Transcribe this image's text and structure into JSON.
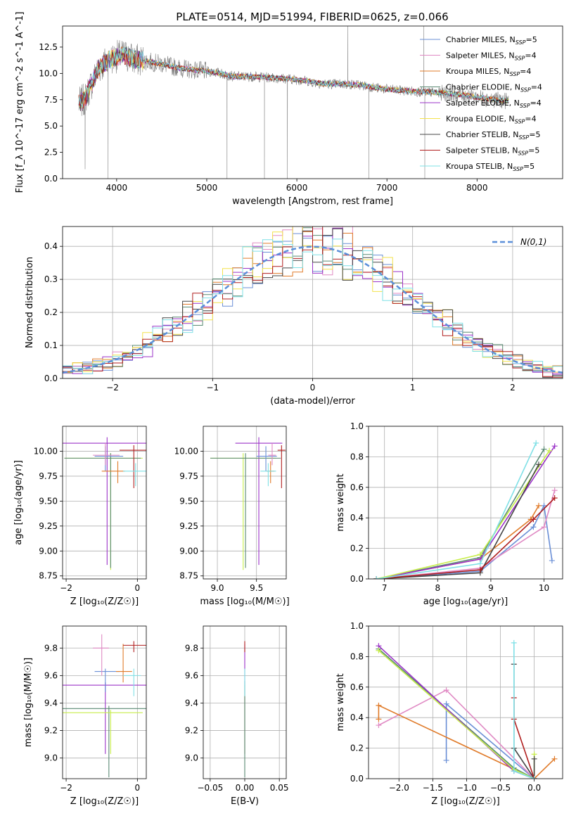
{
  "colors": {
    "Chabrier MILES": "#6a8fd6",
    "Salpeter MILES": "#e08ac4",
    "Kroupa MILES": "#e07b2a",
    "Chabrier ELODIE": "#5a8a72",
    "Salpeter ELODIE": "#9b33c8",
    "Kroupa ELODIE": "#f3e24c",
    "Chabrier STELIB": "#454545",
    "Salpeter STELIB": "#b01e1e",
    "Kroupa STELIB": "#7fe0e6",
    "lime": "#c8ee4a",
    "data": "#808080",
    "gaussian": "#5b8fd9"
  },
  "chart_data": [
    {
      "id": "spectrum",
      "type": "line",
      "title": "PLATE=0514, MJD=51994, FIBERID=0625, z=0.066",
      "xlabel": "wavelength [Angstrom, rest frame]",
      "ylabel": "Flux [f_λ 10^-17 erg cm^-2 s^-1 A^-1]",
      "xlim": [
        3400,
        8950
      ],
      "ylim": [
        0,
        14.5
      ],
      "xticks": [
        4000,
        5000,
        6000,
        7000,
        8000
      ],
      "yticks": [
        0.0,
        2.5,
        5.0,
        7.5,
        10.0,
        12.5
      ],
      "grid": false,
      "legend_position": "top-right",
      "legend": [
        {
          "model": "Chabrier MILES",
          "n_ssp": "5"
        },
        {
          "model": "Salpeter MILES",
          "n_ssp": "4"
        },
        {
          "model": "Kroupa MILES",
          "n_ssp": "4"
        },
        {
          "model": "Chabrier ELODIE",
          "n_ssp": "4"
        },
        {
          "model": "Salpeter ELODIE",
          "n_ssp": "4"
        },
        {
          "model": "Kroupa ELODIE",
          "n_ssp": "4"
        },
        {
          "model": "Chabrier STELIB",
          "n_ssp": "5"
        },
        {
          "model": "Salpeter STELIB",
          "n_ssp": "5"
        },
        {
          "model": "Kroupa STELIB",
          "n_ssp": "5"
        }
      ],
      "continuum": {
        "x": [
          3580,
          3650,
          3700,
          3800,
          3900,
          4000,
          4100,
          4200,
          4300,
          4500,
          4700,
          4900,
          5100,
          5300,
          5500,
          5700,
          5900,
          6100,
          6300,
          6500,
          6700,
          6900,
          7100,
          7300,
          7500,
          7700,
          7900,
          8100,
          8300
        ],
        "y": [
          7.1,
          7.6,
          8.6,
          10.5,
          11.2,
          11.6,
          11.7,
          11.3,
          11.2,
          10.9,
          10.5,
          10.3,
          10.1,
          9.7,
          9.7,
          9.6,
          9.5,
          9.3,
          9.0,
          9.0,
          8.9,
          8.6,
          8.4,
          8.3,
          8.2,
          8.1,
          7.9,
          7.6,
          7.4
        ]
      },
      "absorption_features": [
        {
          "x": 3650,
          "y": 0.9
        },
        {
          "x": 3905,
          "y": 0.0
        },
        {
          "x": 5225,
          "y": 0.0
        },
        {
          "x": 5640,
          "y": 0.0
        },
        {
          "x": 5895,
          "y": 0.0
        },
        {
          "x": 6800,
          "y": 0.0
        },
        {
          "x": 7420,
          "y": 0.0
        }
      ],
      "emission_features": [
        {
          "x": 6565,
          "y": 14.5
        },
        {
          "x": 7410,
          "y": 14.5
        }
      ]
    },
    {
      "id": "residuals",
      "type": "histogram",
      "xlabel": "(data-model)/error",
      "ylabel": "Normed distribution",
      "xlim": [
        -2.5,
        2.5
      ],
      "ylim": [
        0,
        0.46
      ],
      "xticks": [
        -2,
        -1,
        0,
        1,
        2
      ],
      "yticks": [
        0.0,
        0.1,
        0.2,
        0.3,
        0.4
      ],
      "grid": true,
      "legend_position": "top-right",
      "gaussian_label": "N(0,1)",
      "bin_width": 0.1,
      "bins_start": -2.5
    },
    {
      "id": "age-vs-Z",
      "type": "errorbar",
      "xlabel": "Z [log10(Z/Z_sun)]",
      "ylabel": "age [log10(age/yr)]",
      "xlim": [
        -2.1,
        0.25
      ],
      "ylim": [
        8.72,
        10.25
      ],
      "xticks": [
        -2,
        0
      ],
      "yticks": [
        8.75,
        9.0,
        9.25,
        9.5,
        9.75,
        10.0
      ],
      "grid": true,
      "points": [
        {
          "model": "Salpeter ELODIE",
          "x": -0.85,
          "xerr": [
            1.3,
            1.2
          ],
          "y": 10.08,
          "yerr": [
            1.22,
            0.06
          ]
        },
        {
          "model": "lime",
          "x": -0.75,
          "xerr": [
            1.3,
            0.9
          ],
          "y": 9.93,
          "yerr": [
            1.12,
            0.05
          ]
        },
        {
          "model": "Chabrier ELODIE",
          "x": -0.75,
          "xerr": [
            1.3,
            0.85
          ],
          "y": 9.93,
          "yerr": [
            1.1,
            0.05
          ]
        },
        {
          "model": "Chabrier MILES",
          "x": -0.9,
          "xerr": [
            0.3,
            0.5
          ],
          "y": 9.95,
          "yerr": [
            0.15,
            0.1
          ]
        },
        {
          "model": "Salpeter MILES",
          "x": -0.9,
          "xerr": [
            0.35,
            0.4
          ],
          "y": 9.96,
          "yerr": [
            0.1,
            0.12
          ]
        },
        {
          "model": "Kroupa MILES",
          "x": -0.55,
          "xerr": [
            0.45,
            0.2
          ],
          "y": 9.8,
          "yerr": [
            0.12,
            0.1
          ]
        },
        {
          "model": "Salpeter STELIB",
          "x": -0.1,
          "xerr": [
            0.4,
            0.4
          ],
          "y": 10.01,
          "yerr": [
            0.38,
            0.05
          ]
        },
        {
          "model": "Kroupa STELIB",
          "x": -0.05,
          "xerr": [
            0.35,
            0.3
          ],
          "y": 9.8,
          "yerr": [
            0.15,
            0.08
          ]
        }
      ]
    },
    {
      "id": "age-vs-mass",
      "type": "errorbar",
      "xlabel": "mass [log10(M/M_sun)]",
      "ylabel": "",
      "xlim": [
        8.82,
        9.88
      ],
      "ylim": [
        8.72,
        10.25
      ],
      "xticks": [
        9.0,
        9.5
      ],
      "yticks": [
        8.75,
        9.0,
        9.25,
        9.5,
        9.75,
        10.0
      ],
      "grid": true,
      "points": [
        {
          "model": "Salpeter ELODIE",
          "x": 9.53,
          "xerr": [
            0.3,
            0.3
          ],
          "y": 10.08,
          "yerr": [
            1.22,
            0.06
          ]
        },
        {
          "model": "lime",
          "x": 9.33,
          "xerr": [
            0.42,
            0.42
          ],
          "y": 9.93,
          "yerr": [
            1.12,
            0.05
          ]
        },
        {
          "model": "Chabrier ELODIE",
          "x": 9.36,
          "xerr": [
            0.45,
            0.45
          ],
          "y": 9.93,
          "yerr": [
            1.1,
            0.05
          ]
        },
        {
          "model": "Chabrier MILES",
          "x": 9.62,
          "xerr": [
            0.12,
            0.14
          ],
          "y": 9.95,
          "yerr": [
            0.15,
            0.1
          ]
        },
        {
          "model": "Salpeter MILES",
          "x": 9.7,
          "xerr": [
            0.05,
            0.05
          ],
          "y": 9.96,
          "yerr": [
            0.1,
            0.12
          ]
        },
        {
          "model": "Kroupa MILES",
          "x": 9.68,
          "xerr": [
            0.05,
            0.05
          ],
          "y": 9.8,
          "yerr": [
            0.12,
            0.1
          ]
        },
        {
          "model": "Salpeter STELIB",
          "x": 9.82,
          "xerr": [
            0.05,
            0.05
          ],
          "y": 10.01,
          "yerr": [
            0.38,
            0.05
          ]
        },
        {
          "model": "Kroupa STELIB",
          "x": 9.65,
          "xerr": [
            0.1,
            0.1
          ],
          "y": 9.8,
          "yerr": [
            0.15,
            0.08
          ]
        }
      ]
    },
    {
      "id": "weight-vs-age",
      "type": "line",
      "xlabel": "age [log10(age/yr)]",
      "ylabel": "mass weight",
      "xlim": [
        6.7,
        10.35
      ],
      "ylim": [
        0,
        1.0
      ],
      "xticks": [
        7,
        8,
        9,
        10
      ],
      "yticks": [
        0.0,
        0.2,
        0.4,
        0.6,
        0.8,
        1.0
      ],
      "grid": true,
      "series": [
        {
          "model": "Chabrier MILES",
          "x": [
            6.85,
            8.8,
            9.8,
            10.0,
            10.15
          ],
          "y": [
            0.0,
            0.05,
            0.34,
            0.48,
            0.12
          ]
        },
        {
          "model": "Salpeter MILES",
          "x": [
            6.85,
            8.8,
            10.0,
            10.2
          ],
          "y": [
            0.0,
            0.07,
            0.34,
            0.58
          ]
        },
        {
          "model": "Kroupa MILES",
          "x": [
            6.85,
            8.8,
            9.75,
            9.9
          ],
          "y": [
            0.0,
            0.13,
            0.39,
            0.48
          ]
        },
        {
          "model": "Chabrier ELODIE",
          "x": [
            6.85,
            8.8,
            10.0
          ],
          "y": [
            0.0,
            0.14,
            0.85
          ]
        },
        {
          "model": "Salpeter ELODIE",
          "x": [
            6.85,
            8.8,
            10.2
          ],
          "y": [
            0.0,
            0.13,
            0.87
          ]
        },
        {
          "model": "lime",
          "x": [
            6.85,
            8.8,
            10.1
          ],
          "y": [
            0.0,
            0.16,
            0.84
          ]
        },
        {
          "model": "Chabrier STELIB",
          "x": [
            6.85,
            8.8,
            9.9
          ],
          "y": [
            0.0,
            0.04,
            0.75
          ]
        },
        {
          "model": "Salpeter STELIB",
          "x": [
            6.85,
            8.8,
            9.8,
            10.2
          ],
          "y": [
            0.0,
            0.06,
            0.39,
            0.53
          ]
        },
        {
          "model": "Kroupa STELIB",
          "x": [
            6.85,
            8.8,
            9.85
          ],
          "y": [
            0.0,
            0.1,
            0.89
          ]
        }
      ]
    },
    {
      "id": "mass-vs-Z",
      "type": "errorbar",
      "xlabel": "Z [log10(Z/Z_sun)]",
      "ylabel": "mass [log10(M/M_sun)]",
      "xlim": [
        -2.1,
        0.25
      ],
      "ylim": [
        8.85,
        9.96
      ],
      "xticks": [
        -2,
        0
      ],
      "yticks": [
        9.0,
        9.2,
        9.4,
        9.6,
        9.8
      ],
      "grid": true,
      "points": [
        {
          "model": "Salpeter ELODIE",
          "x": -0.9,
          "xerr": [
            1.2,
            1.15
          ],
          "y": 9.53,
          "yerr": [
            0.5,
            0.02
          ]
        },
        {
          "model": "Chabrier ELODIE",
          "x": -0.8,
          "xerr": [
            1.3,
            1.1
          ],
          "y": 9.36,
          "yerr": [
            0.5,
            0.02
          ]
        },
        {
          "model": "lime",
          "x": -0.75,
          "xerr": [
            1.35,
            0.9
          ],
          "y": 9.33,
          "yerr": [
            0.3,
            0.02
          ]
        },
        {
          "model": "Chabrier MILES",
          "x": -0.9,
          "xerr": [
            0.3,
            0.4
          ],
          "y": 9.63,
          "yerr": [
            0.15,
            0.02
          ]
        },
        {
          "model": "Salpeter MILES",
          "x": -1.0,
          "xerr": [
            0.25,
            0.2
          ],
          "y": 9.8,
          "yerr": [
            0.2,
            0.1
          ]
        },
        {
          "model": "Kroupa MILES",
          "x": -0.4,
          "xerr": [
            0.2,
            0.25
          ],
          "y": 9.63,
          "yerr": [
            0.08,
            0.2
          ]
        },
        {
          "model": "Salpeter STELIB",
          "x": -0.1,
          "xerr": [
            0.3,
            0.35
          ],
          "y": 9.82,
          "yerr": [
            0.05,
            0.03
          ]
        },
        {
          "model": "Kroupa STELIB",
          "x": -0.1,
          "xerr": [
            0.3,
            0.2
          ],
          "y": 9.6,
          "yerr": [
            0.15,
            0.05
          ]
        }
      ]
    },
    {
      "id": "mass-vs-EBV",
      "type": "errorbar",
      "xlabel": "E(B-V)",
      "ylabel": "",
      "xlim": [
        -0.06,
        0.06
      ],
      "ylim": [
        8.85,
        9.96
      ],
      "xticks": [
        -0.05,
        0.0,
        0.05
      ],
      "yticks": [
        9.0,
        9.2,
        9.4,
        9.6,
        9.8
      ],
      "grid": true,
      "points": [
        {
          "model": "Salpeter ELODIE",
          "x": 0.0,
          "xerr": [
            0.0,
            0.0
          ],
          "y": 9.53,
          "yerr": [
            0.5,
            0.3
          ]
        },
        {
          "model": "lime",
          "x": 0.0,
          "xerr": [
            0.0,
            0.0
          ],
          "y": 9.33,
          "yerr": [
            0.3,
            0.2
          ]
        },
        {
          "model": "Chabrier ELODIE",
          "x": 0.0,
          "xerr": [
            0.0,
            0.0
          ],
          "y": 9.36,
          "yerr": [
            0.5,
            0.2
          ]
        },
        {
          "model": "Salpeter STELIB",
          "x": 0.0,
          "xerr": [
            0.0,
            0.0
          ],
          "y": 9.82,
          "yerr": [
            0.05,
            0.03
          ]
        },
        {
          "model": "Kroupa STELIB",
          "x": 0.0,
          "xerr": [
            0.0,
            0.0
          ],
          "y": 9.6,
          "yerr": [
            0.15,
            0.05
          ]
        }
      ]
    },
    {
      "id": "weight-vs-Z",
      "type": "line",
      "xlabel": "Z [log10(Z/Z_sun)]",
      "ylabel": "mass weight",
      "xlim": [
        -2.45,
        0.42
      ],
      "ylim": [
        0,
        1.0
      ],
      "xticks": [
        -2.0,
        -1.5,
        -1.0,
        -0.5,
        0.0
      ],
      "yticks": [
        0.0,
        0.2,
        0.4,
        0.6,
        0.8,
        1.0
      ],
      "grid": true,
      "series": [
        {
          "model": "Chabrier MILES",
          "x": [
            -1.3,
            -1.3,
            0.0
          ],
          "y": [
            0.12,
            0.49,
            0.0
          ]
        },
        {
          "model": "Salpeter MILES",
          "x": [
            -2.3,
            -1.3,
            0.0
          ],
          "y": [
            0.35,
            0.58,
            0.0
          ]
        },
        {
          "model": "Kroupa MILES",
          "x": [
            -2.3,
            -2.3,
            0.0,
            0.3
          ],
          "y": [
            0.39,
            0.48,
            0.0,
            0.13
          ]
        },
        {
          "model": "Chabrier ELODIE",
          "x": [
            -2.3,
            -0.3,
            0.0
          ],
          "y": [
            0.85,
            0.07,
            0.0
          ]
        },
        {
          "model": "Salpeter ELODIE",
          "x": [
            -2.3,
            -0.3,
            0.0
          ],
          "y": [
            0.87,
            0.05,
            0.0
          ]
        },
        {
          "model": "lime",
          "x": [
            -2.3,
            -0.3,
            0.0,
            0.0
          ],
          "y": [
            0.84,
            0.06,
            0.0,
            0.16
          ]
        },
        {
          "model": "Chabrier STELIB",
          "x": [
            -0.3,
            -0.3,
            0.0,
            0.0
          ],
          "y": [
            0.75,
            0.2,
            0.0,
            0.13
          ]
        },
        {
          "model": "Salpeter STELIB",
          "x": [
            -0.3,
            -0.3,
            0.0
          ],
          "y": [
            0.53,
            0.39,
            0.0
          ]
        },
        {
          "model": "Kroupa STELIB",
          "x": [
            -0.3,
            -0.3,
            0.0
          ],
          "y": [
            0.89,
            0.05,
            0.0
          ]
        }
      ]
    }
  ]
}
